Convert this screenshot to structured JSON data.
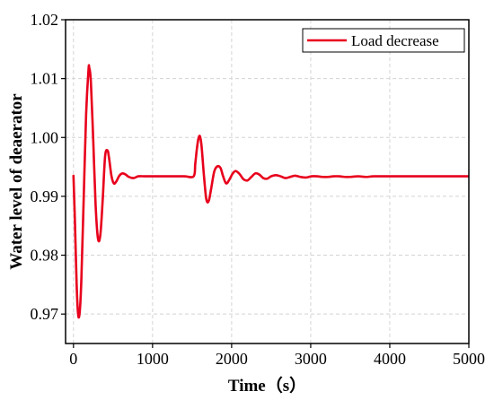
{
  "chart_data": {
    "type": "line",
    "xlabel": "Time（s）",
    "ylabel": "Water level of deaerator",
    "xlim": [
      -100,
      5000
    ],
    "ylim": [
      0.965,
      1.02
    ],
    "x_ticks": [
      0,
      1000,
      2000,
      3000,
      4000,
      5000
    ],
    "y_ticks": [
      0.97,
      0.98,
      0.99,
      1.0,
      1.01,
      1.02
    ],
    "x_tick_labels": [
      "0",
      "1000",
      "2000",
      "3000",
      "4000",
      "5000"
    ],
    "y_tick_labels": [
      "0.97",
      "0.98",
      "0.99",
      "1.00",
      "1.01",
      "1.02"
    ],
    "grid": true,
    "legend_position": "top-right",
    "series": [
      {
        "name": "Load decrease",
        "color": "#e8001c",
        "x": [
          0,
          20,
          40,
          60,
          80,
          100,
          130,
          160,
          190,
          200,
          220,
          250,
          280,
          310,
          340,
          370,
          400,
          430,
          450,
          480,
          510,
          540,
          580,
          620,
          660,
          700,
          760,
          820,
          900,
          1000,
          1200,
          1400,
          1520,
          1540,
          1560,
          1580,
          1600,
          1620,
          1650,
          1680,
          1710,
          1740,
          1780,
          1820,
          1860,
          1890,
          1930,
          1970,
          2010,
          2050,
          2100,
          2150,
          2200,
          2250,
          2300,
          2350,
          2400,
          2450,
          2500,
          2560,
          2620,
          2680,
          2740,
          2800,
          2870,
          2940,
          3010,
          3080,
          3150,
          3220,
          3290,
          3360,
          3430,
          3500,
          3600,
          3700,
          3800,
          4000,
          4500,
          5000
        ],
        "y": [
          0.9935,
          0.985,
          0.975,
          0.9698,
          0.9705,
          0.976,
          0.99,
          1.004,
          1.0115,
          1.0118,
          1.0095,
          0.9995,
          0.9885,
          0.9828,
          0.9835,
          0.9895,
          0.9968,
          0.9978,
          0.9965,
          0.9935,
          0.9922,
          0.9925,
          0.9935,
          0.9939,
          0.9937,
          0.9933,
          0.9931,
          0.9934,
          0.9934,
          0.9934,
          0.9934,
          0.9934,
          0.9934,
          0.9955,
          0.998,
          0.9998,
          1.0002,
          0.9985,
          0.9935,
          0.9895,
          0.9892,
          0.9912,
          0.9942,
          0.9951,
          0.9948,
          0.9935,
          0.9922,
          0.9928,
          0.9938,
          0.9943,
          0.9938,
          0.9929,
          0.9927,
          0.9933,
          0.9939,
          0.9937,
          0.9931,
          0.993,
          0.9934,
          0.9936,
          0.9934,
          0.9931,
          0.9933,
          0.9935,
          0.9933,
          0.9932,
          0.9934,
          0.9934,
          0.9933,
          0.9933,
          0.9934,
          0.9934,
          0.9933,
          0.9933,
          0.9934,
          0.9933,
          0.9934,
          0.9934,
          0.9934,
          0.9934
        ]
      }
    ]
  }
}
